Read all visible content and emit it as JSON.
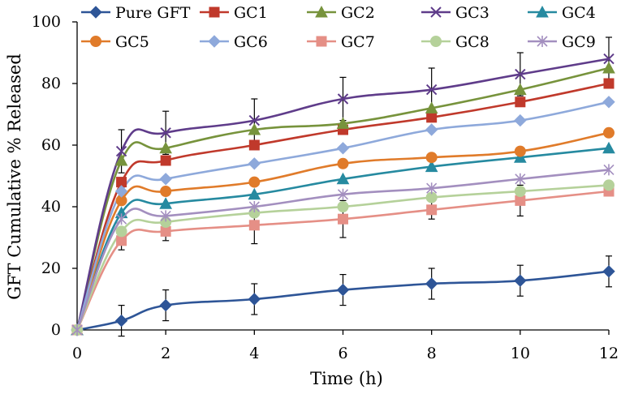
{
  "chart_data": {
    "type": "line",
    "title": "",
    "xlabel": "Time (h)",
    "ylabel": "GFT Cumulative % Released",
    "xlim": [
      0,
      12
    ],
    "ylim": [
      0,
      100
    ],
    "xticks": [
      "0",
      "2",
      "4",
      "6",
      "8",
      "10",
      "12"
    ],
    "yticks": [
      "0",
      "20",
      "40",
      "60",
      "80",
      "100"
    ],
    "grid": false,
    "legend_position": "top",
    "x": [
      0,
      1,
      2,
      4,
      6,
      8,
      10,
      12
    ],
    "series": [
      {
        "name": "Pure GFT",
        "color": "#2e5597",
        "marker": "diamond",
        "values": [
          0,
          3,
          8,
          10,
          13,
          15,
          16,
          19
        ],
        "errors": [
          0,
          5,
          5,
          5,
          5,
          5,
          5,
          5
        ]
      },
      {
        "name": "GC1",
        "color": "#c0392b",
        "marker": "square",
        "values": [
          0,
          48,
          55,
          60,
          65,
          69,
          74,
          80
        ]
      },
      {
        "name": "GC2",
        "color": "#77933c",
        "marker": "triangle",
        "values": [
          0,
          55,
          59,
          65,
          67,
          72,
          78,
          85
        ]
      },
      {
        "name": "GC3",
        "color": "#5f3c8a",
        "marker": "x",
        "values": [
          0,
          58,
          64,
          68,
          75,
          78,
          83,
          88
        ],
        "errors": [
          0,
          7,
          7,
          7,
          7,
          7,
          7,
          7
        ]
      },
      {
        "name": "GC4",
        "color": "#268aa0",
        "marker": "triangle",
        "values": [
          0,
          38,
          41,
          44,
          49,
          53,
          56,
          59
        ]
      },
      {
        "name": "GC5",
        "color": "#e07b2a",
        "marker": "circle",
        "values": [
          0,
          42,
          45,
          48,
          54,
          56,
          58,
          64
        ]
      },
      {
        "name": "GC6",
        "color": "#8ea9db",
        "marker": "diamond",
        "values": [
          0,
          45,
          49,
          54,
          59,
          65,
          68,
          74
        ]
      },
      {
        "name": "GC7",
        "color": "#e58f86",
        "marker": "square",
        "values": [
          0,
          29,
          32,
          34,
          36,
          39,
          42,
          45
        ],
        "errors": [
          0,
          3,
          3,
          6,
          6,
          3,
          5,
          0
        ]
      },
      {
        "name": "GC8",
        "color": "#b5d19a",
        "marker": "circle",
        "values": [
          0,
          32,
          35,
          38,
          40,
          43,
          45,
          47
        ]
      },
      {
        "name": "GC9",
        "color": "#a38fbf",
        "marker": "asterisk",
        "values": [
          0,
          36,
          37,
          40,
          44,
          46,
          49,
          52
        ]
      }
    ]
  }
}
